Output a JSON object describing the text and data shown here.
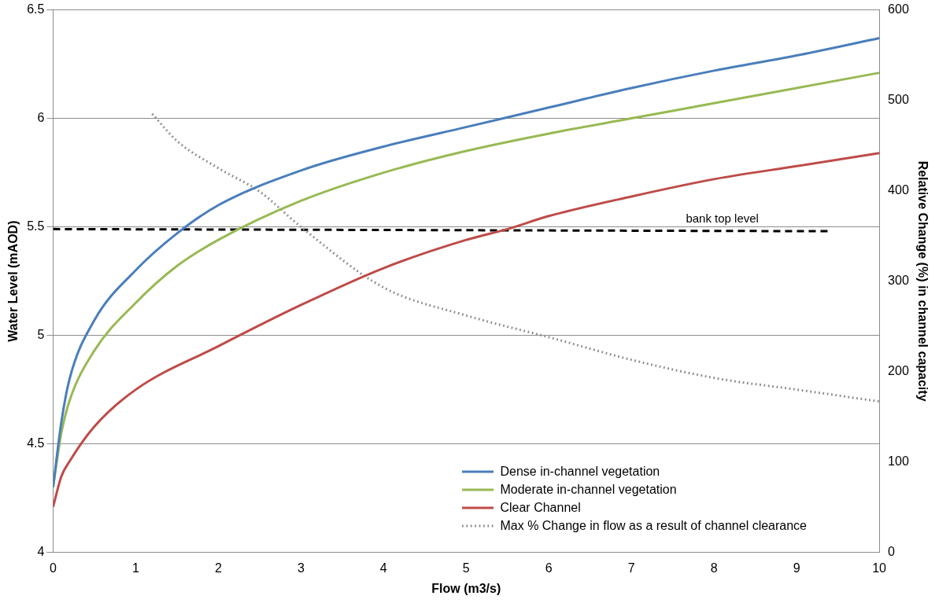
{
  "chart_data": {
    "type": "line",
    "xlabel": "Flow (m3/s)",
    "ylabel": "Water Level (mAOD)",
    "y2label": "Relative Change (%) in channel capacity",
    "xlim": [
      0,
      10
    ],
    "xticks": [
      0,
      1,
      2,
      3,
      4,
      5,
      6,
      7,
      8,
      9,
      10
    ],
    "ylim": [
      4,
      6.5
    ],
    "yticks": [
      4,
      4.5,
      5,
      5.5,
      6,
      6.5
    ],
    "y2lim": [
      0,
      600
    ],
    "y2ticks": [
      0,
      100,
      200,
      300,
      400,
      500,
      600
    ],
    "grid": "y",
    "legend": "bottom right",
    "marker": "none",
    "annotations": [
      {
        "text": "bank top level",
        "x": 8.1,
        "y": 5.49
      }
    ],
    "series": [
      {
        "name": "Dense in-channel vegetation",
        "color": "#4a7ebb",
        "x": [
          0,
          0.1,
          0.2,
          0.5,
          1,
          1.5,
          2,
          3,
          4,
          5,
          6,
          7,
          8,
          9,
          10
        ],
        "values": [
          4.3,
          4.6,
          4.8,
          5.07,
          5.3,
          5.47,
          5.6,
          5.76,
          5.87,
          5.96,
          6.05,
          6.14,
          6.22,
          6.29,
          6.37
        ]
      },
      {
        "name": "Moderate in-channel vegetation",
        "color": "#98b954",
        "x": [
          0,
          0.1,
          0.2,
          0.5,
          1,
          1.5,
          2,
          3,
          4,
          5,
          6,
          7,
          8,
          9,
          10
        ],
        "values": [
          4.3,
          4.55,
          4.7,
          4.93,
          5.15,
          5.32,
          5.44,
          5.62,
          5.75,
          5.85,
          5.93,
          6.0,
          6.07,
          6.14,
          6.21
        ]
      },
      {
        "name": "Clear Channel",
        "color": "#be4b48",
        "x": [
          0,
          0.1,
          0.2,
          0.5,
          1,
          2,
          3,
          4,
          5,
          5.5,
          6,
          7,
          8,
          9,
          10
        ],
        "values": [
          4.21,
          4.35,
          4.42,
          4.58,
          4.75,
          4.95,
          5.14,
          5.31,
          5.44,
          5.49,
          5.55,
          5.64,
          5.72,
          5.78,
          5.84
        ]
      },
      {
        "name": "Max % Change in flow as a result of channel clearance",
        "color": "#8c8c8c",
        "axis": "y2",
        "line_style": "dotted",
        "x": [
          1.2,
          1.5,
          2,
          2.5,
          3,
          4,
          5,
          6,
          7,
          8,
          9,
          10
        ],
        "values": [
          485,
          455,
          425,
          399,
          360,
          293,
          262,
          238,
          213,
          193,
          180,
          167
        ]
      },
      {
        "color": "#000000",
        "line_style": "dashed",
        "x": [
          0,
          9.4
        ],
        "values": [
          5.49,
          5.48
        ]
      }
    ]
  }
}
